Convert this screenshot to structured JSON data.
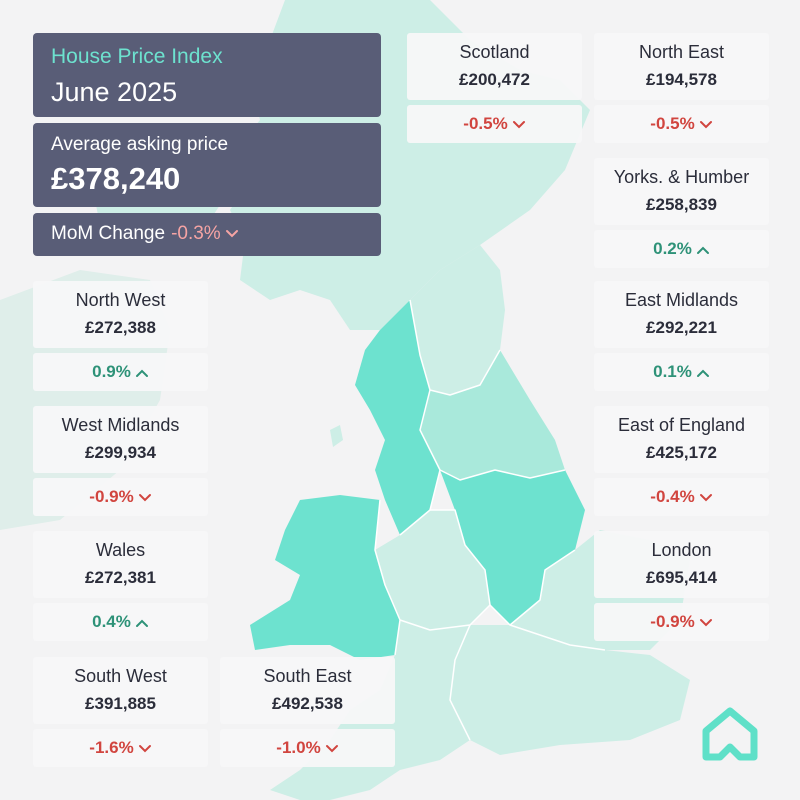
{
  "header": {
    "title": "House Price Index",
    "date": "June 2025",
    "avg_label": "Average asking price",
    "avg_value": "£378,240",
    "mom_label": "MoM Change",
    "mom_value": "-0.3%"
  },
  "regions": [
    {
      "key": "scotland",
      "name": "Scotland",
      "price": "£200,472",
      "change": "-0.5%",
      "direction": "down"
    },
    {
      "key": "north-east",
      "name": "North East",
      "price": "£194,578",
      "change": "-0.5%",
      "direction": "down"
    },
    {
      "key": "yorks-humber",
      "name": "Yorks. & Humber",
      "price": "£258,839",
      "change": "0.2%",
      "direction": "up"
    },
    {
      "key": "north-west",
      "name": "North West",
      "price": "£272,388",
      "change": "0.9%",
      "direction": "up"
    },
    {
      "key": "east-midlands",
      "name": "East Midlands",
      "price": "£292,221",
      "change": "0.1%",
      "direction": "up"
    },
    {
      "key": "west-midlands",
      "name": "West Midlands",
      "price": "£299,934",
      "change": "-0.9%",
      "direction": "down"
    },
    {
      "key": "east-of-england",
      "name": "East of England",
      "price": "£425,172",
      "change": "-0.4%",
      "direction": "down"
    },
    {
      "key": "wales",
      "name": "Wales",
      "price": "£272,381",
      "change": "0.4%",
      "direction": "up"
    },
    {
      "key": "london",
      "name": "London",
      "price": "£695,414",
      "change": "-0.9%",
      "direction": "down"
    },
    {
      "key": "south-west",
      "name": "South West",
      "price": "£391,885",
      "change": "-1.6%",
      "direction": "down"
    },
    {
      "key": "south-east",
      "name": "South East",
      "price": "£492,538",
      "change": "-1.0%",
      "direction": "down"
    }
  ],
  "colors": {
    "header_bg": "#595d77",
    "accent": "#6de2cf",
    "negative": "#d1453f",
    "positive": "#2e9278",
    "map_light": "#cdeee6",
    "map_mid": "#a9e9db",
    "map_strong": "#6de2cf",
    "map_pale": "#dfeeea"
  },
  "logo": {
    "icon": "house-logo-icon"
  }
}
